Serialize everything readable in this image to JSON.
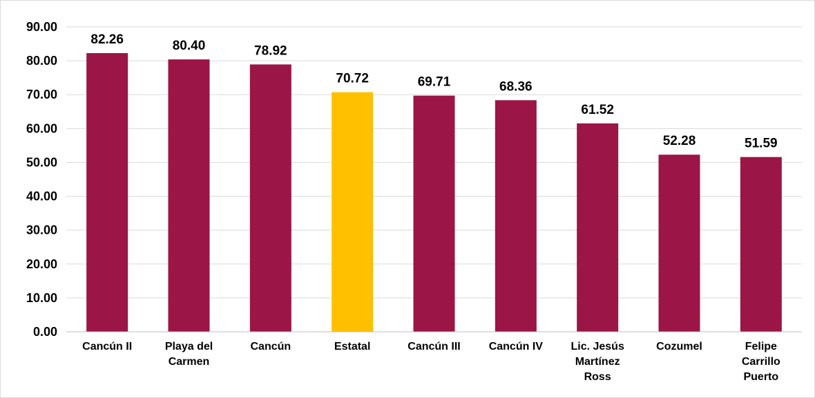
{
  "chart_data": {
    "type": "bar",
    "title": "",
    "xlabel": "",
    "ylabel": "",
    "ylim": [
      0,
      90
    ],
    "yticks": [
      0,
      10,
      20,
      30,
      40,
      50,
      60,
      70,
      80,
      90
    ],
    "ytick_labels": [
      "0.00",
      "10.00",
      "20.00",
      "30.00",
      "40.00",
      "50.00",
      "60.00",
      "70.00",
      "80.00",
      "90.00"
    ],
    "grid": true,
    "legend": "none",
    "categories": [
      [
        "Cancún II"
      ],
      [
        "Playa del",
        "Carmen"
      ],
      [
        "Cancún"
      ],
      [
        "Estatal"
      ],
      [
        "Cancún III"
      ],
      [
        "Cancún IV"
      ],
      [
        "Lic. Jesús",
        "Martínez",
        "Ross"
      ],
      [
        "Cozumel"
      ],
      [
        "Felipe",
        "Carrillo",
        "Puerto"
      ]
    ],
    "values": [
      82.26,
      80.4,
      78.92,
      70.72,
      69.71,
      68.36,
      61.52,
      52.28,
      51.59
    ],
    "value_labels": [
      "82.26",
      "80.40",
      "78.92",
      "70.72",
      "69.71",
      "68.36",
      "61.52",
      "52.28",
      "51.59"
    ],
    "colors": [
      "#9b1546",
      "#9b1546",
      "#9b1546",
      "#ffc000",
      "#9b1546",
      "#9b1546",
      "#9b1546",
      "#9b1546",
      "#9b1546"
    ],
    "highlight_category": "Estatal"
  }
}
